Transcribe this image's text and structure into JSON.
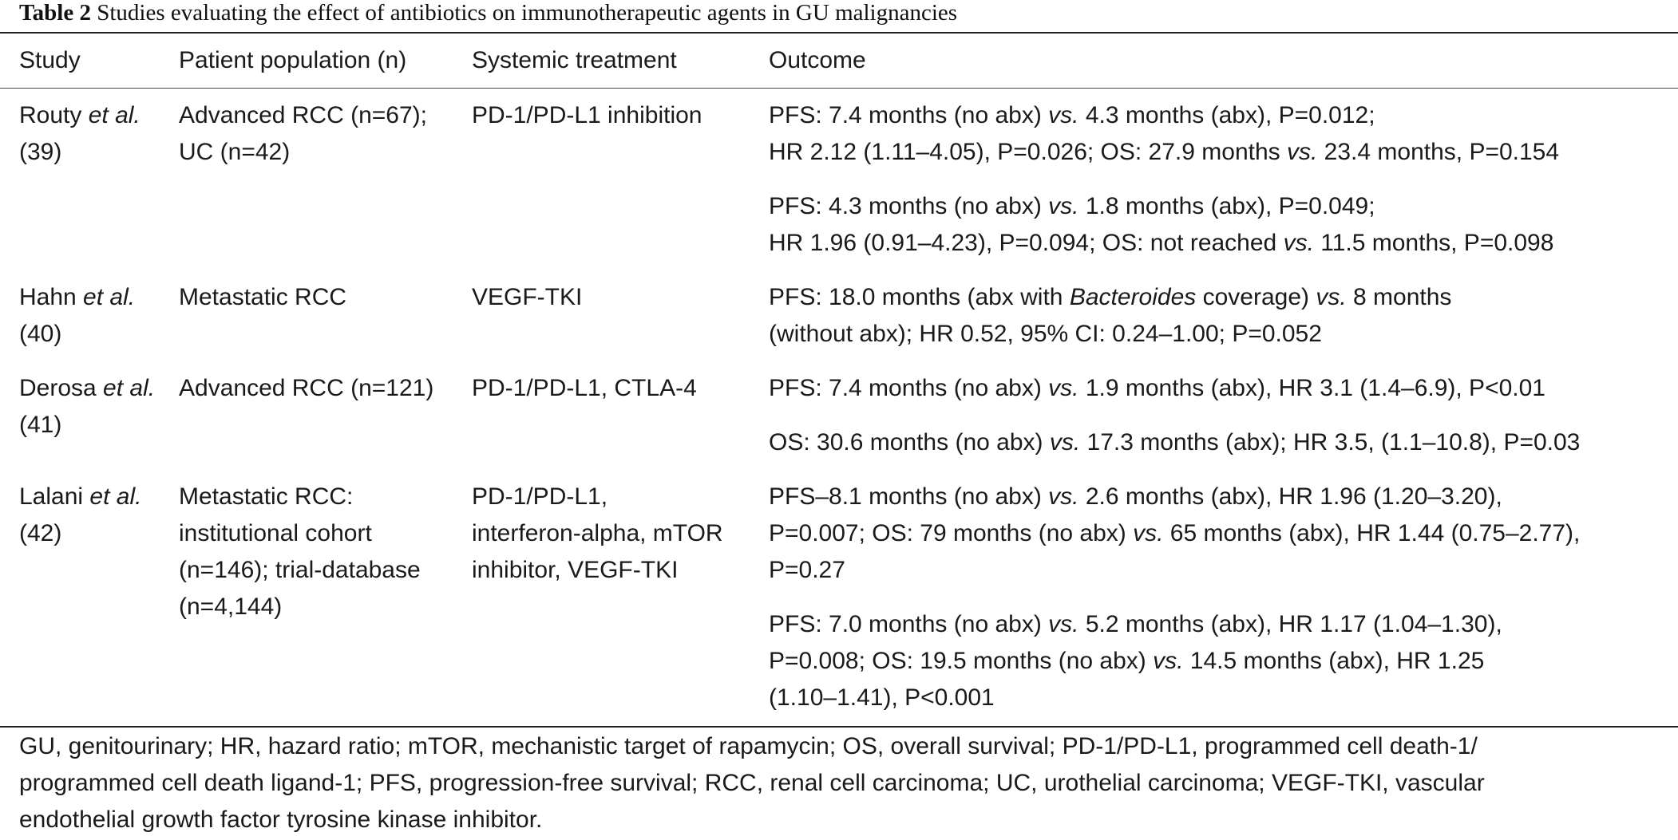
{
  "caption": {
    "label": "Table 2",
    "title": "Studies evaluating the effect of antibiotics on immunotherapeutic agents in GU malignancies"
  },
  "headers": {
    "study": "Study",
    "population": "Patient population (n)",
    "treatment": "Systemic treatment",
    "outcome": "Outcome"
  },
  "rows": {
    "routy": {
      "author": "Routy",
      "etal": " et al.",
      "ref": "(39)",
      "pop_1": "Advanced RCC (n=67);",
      "pop_2": "UC (n=42)",
      "treat_1": "PD-1/PD-L1 inhibition",
      "o1_l1_a": "PFS: 7.4 months (no abx) ",
      "o1_l1_vs": "vs.",
      "o1_l1_b": " 4.3 months (abx), P=0.012;",
      "o1_l2_a": "HR 2.12 (1.11–4.05), P=0.026; OS: 27.9 months ",
      "o1_l2_vs": "vs.",
      "o1_l2_b": " 23.4 months, P=0.154",
      "o2_l1_a": "PFS: 4.3 months (no abx) ",
      "o2_l1_vs": "vs.",
      "o2_l1_b": " 1.8 months (abx), P=0.049;",
      "o2_l2_a": "HR 1.96 (0.91–4.23), P=0.094; OS: not reached ",
      "o2_l2_vs": "vs.",
      "o2_l2_b": " 11.5 months, P=0.098"
    },
    "hahn": {
      "author": "Hahn",
      "etal": " et al.",
      "ref": "(40)",
      "pop_1": "Metastatic RCC",
      "treat_1": "VEGF-TKI",
      "o1_l1_a": "PFS: 18.0 months (abx with ",
      "o1_l1_italic": "Bacteroides",
      "o1_l1_b": " coverage) ",
      "o1_l1_vs": "vs.",
      "o1_l1_c": " 8 months",
      "o1_l2": "(without abx); HR 0.52, 95% CI: 0.24–1.00; P=0.052"
    },
    "derosa": {
      "author": "Derosa",
      "etal": " et al.",
      "ref": "(41)",
      "pop_1": "Advanced RCC (n=121)",
      "treat_1": "PD-1/PD-L1, CTLA-4",
      "o1_l1_a": "PFS: 7.4 months (no abx) ",
      "o1_l1_vs": "vs.",
      "o1_l1_b": " 1.9 months (abx), HR 3.1 (1.4–6.9), P<0.01",
      "o2_l1_a": "OS: 30.6 months (no abx) ",
      "o2_l1_vs": "vs.",
      "o2_l1_b": " 17.3 months (abx); HR 3.5, (1.1–10.8), P=0.03"
    },
    "lalani": {
      "author": "Lalani",
      "etal": " et al.",
      "ref": "(42)",
      "pop_1": "Metastatic RCC:",
      "pop_2": "institutional cohort",
      "pop_3": "(n=146); trial-database",
      "pop_4": "(n=4,144)",
      "treat_1": "PD-1/PD-L1,",
      "treat_2": "interferon-alpha, mTOR",
      "treat_3": "inhibitor, VEGF-TKI",
      "o1_l1_a": "PFS–8.1 months (no abx) ",
      "o1_l1_vs": "vs.",
      "o1_l1_b": " 2.6 months (abx), HR 1.96 (1.20–3.20),",
      "o1_l2_a": "P=0.007; OS: 79 months (no abx) ",
      "o1_l2_vs": "vs.",
      "o1_l2_b": " 65 months (abx), HR 1.44 (0.75–2.77),",
      "o1_l3": "P=0.27",
      "o2_l1_a": "PFS: 7.0 months (no abx) ",
      "o2_l1_vs": "vs.",
      "o2_l1_b": " 5.2 months (abx), HR 1.17 (1.04–1.30),",
      "o2_l2_a": "P=0.008; OS: 19.5 months (no abx) ",
      "o2_l2_vs": "vs.",
      "o2_l2_b": " 14.5 months (abx), HR 1.25",
      "o2_l3": "(1.10–1.41), P<0.001"
    }
  },
  "footnote": {
    "line_1": "GU, genitourinary; HR, hazard ratio; mTOR, mechanistic target of rapamycin; OS, overall survival; PD-1/PD-L1, programmed cell death-1/",
    "line_2": "programmed cell death ligand-1; PFS, progression-free survival; RCC, renal cell carcinoma; UC, urothelial carcinoma; VEGF-TKI, vascular",
    "line_3": "endothelial growth factor tyrosine kinase inhibitor."
  }
}
